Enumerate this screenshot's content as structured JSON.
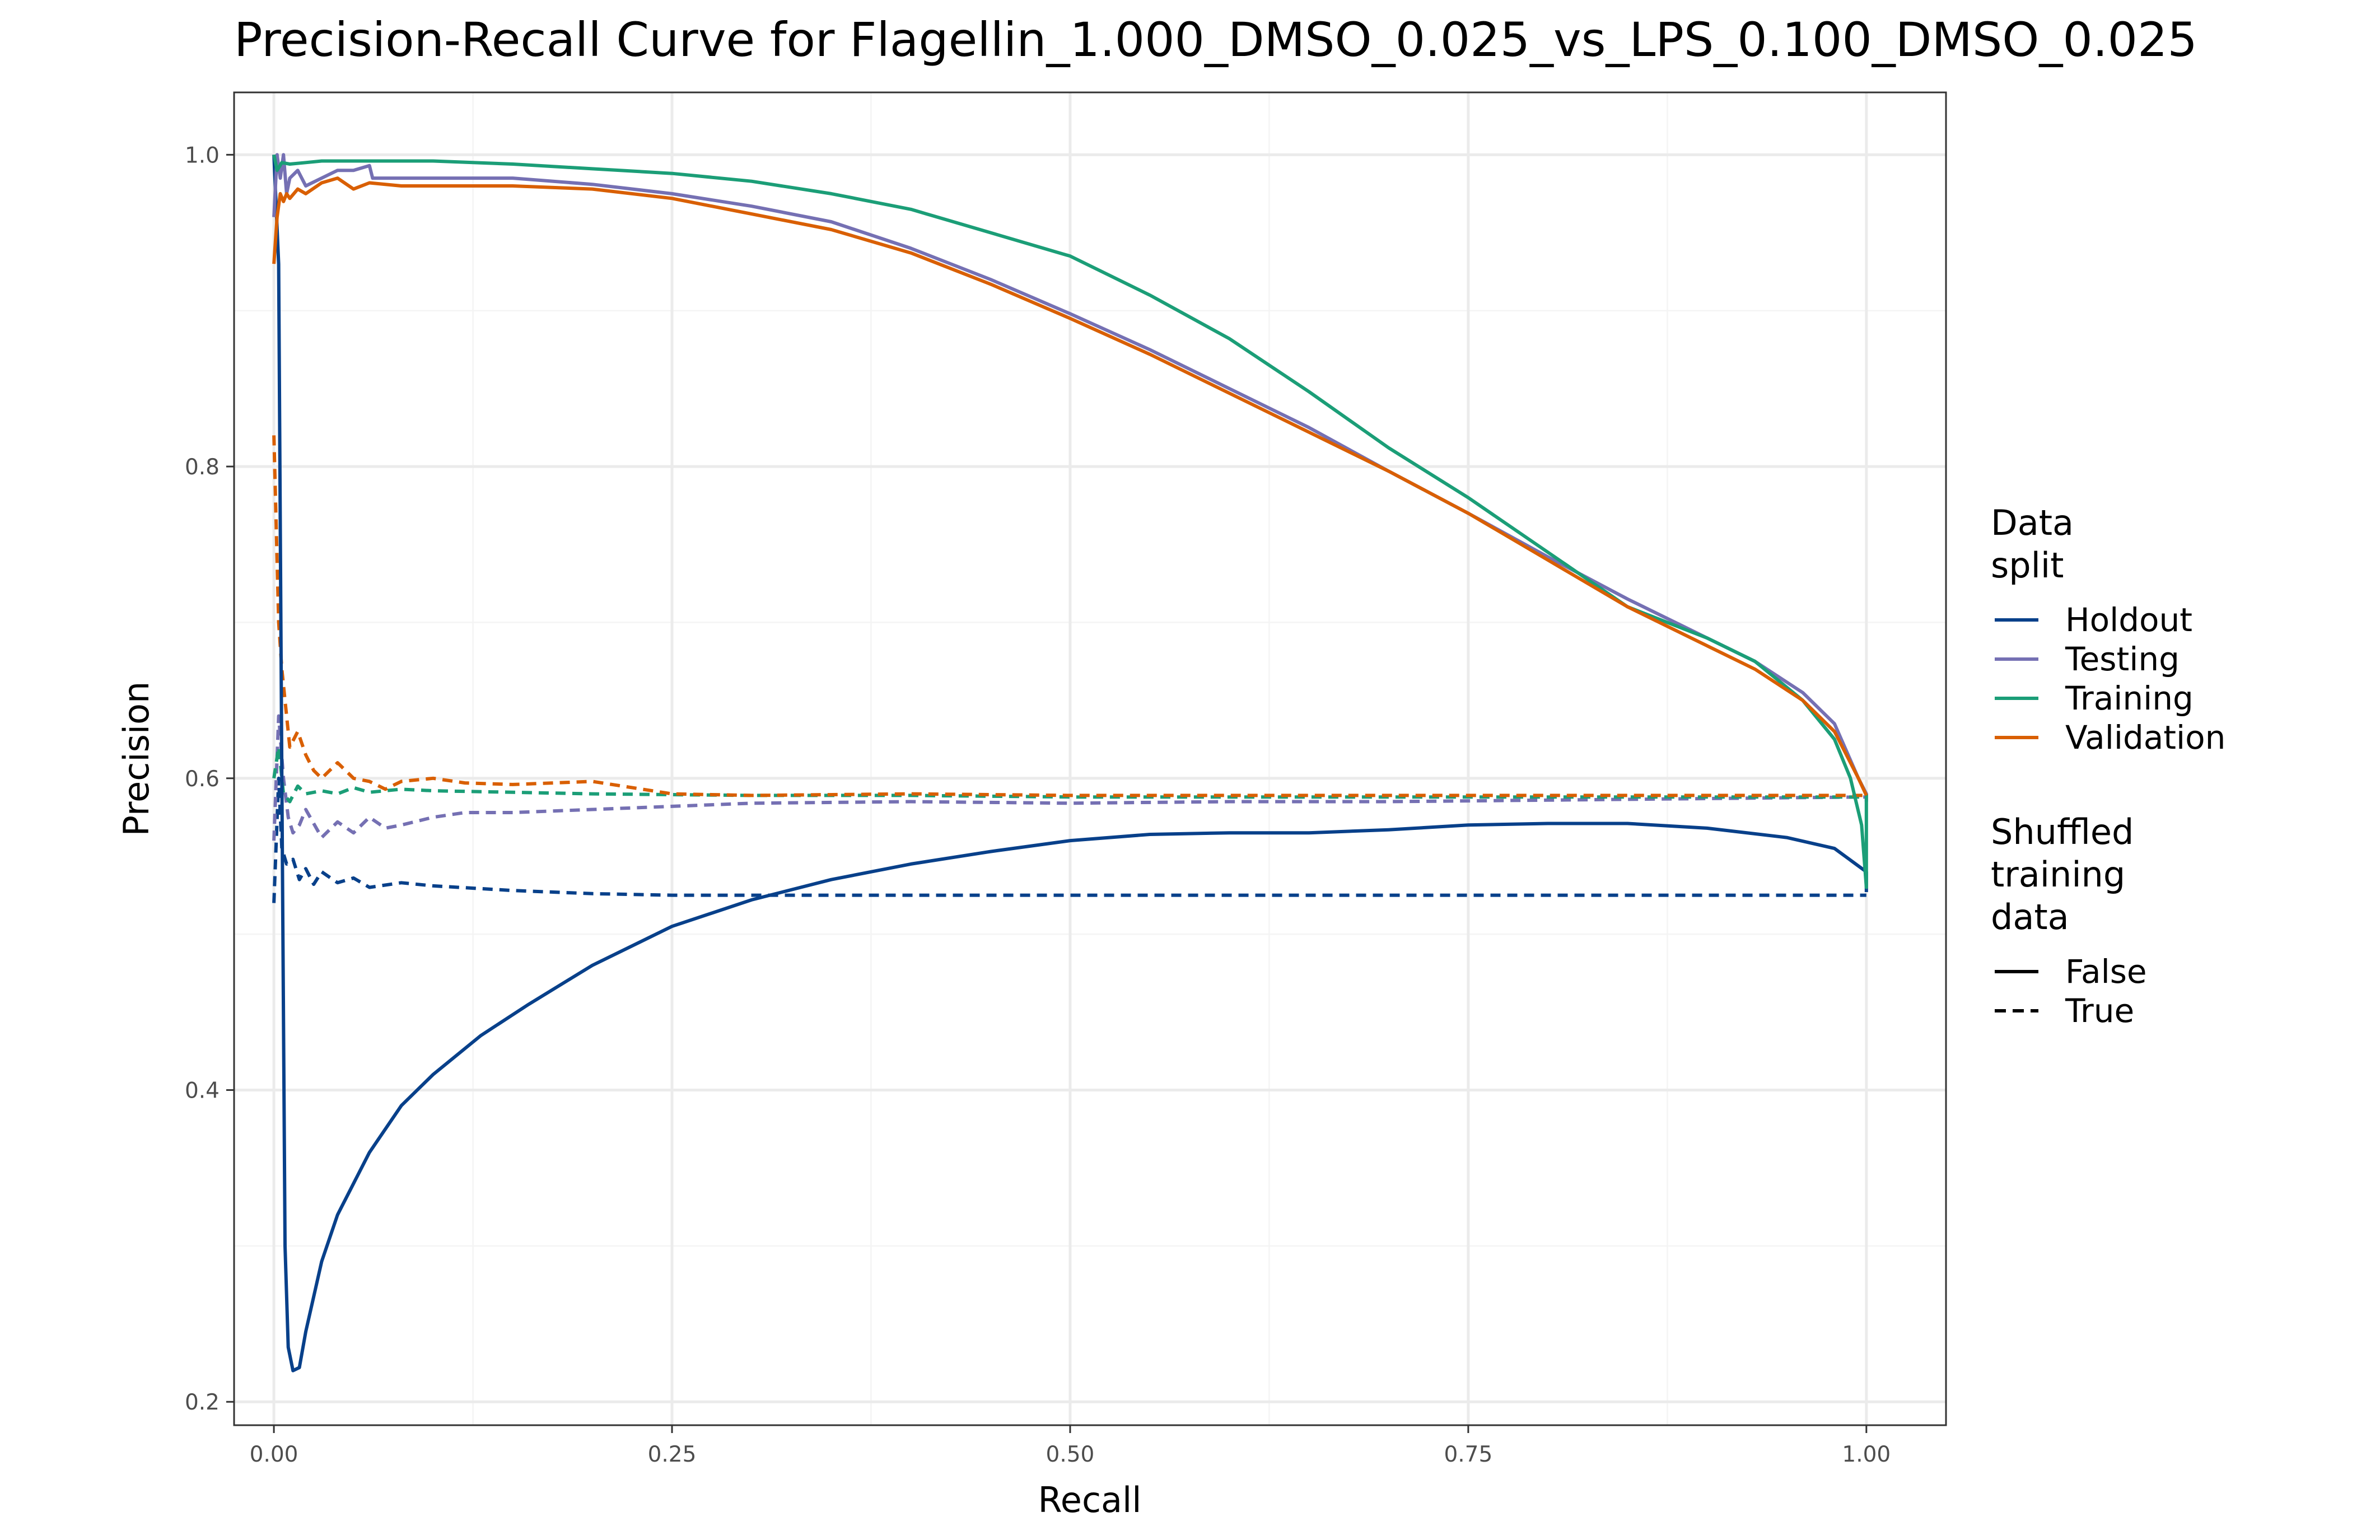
{
  "chart_data": {
    "type": "line",
    "title": "Precision-Recall Curve for Flagellin_1.000_DMSO_0.025_vs_LPS_0.100_DMSO_0.025",
    "xlabel": "Recall",
    "ylabel": "Precision",
    "xlim": [
      -0.025,
      1.05
    ],
    "ylim": [
      0.185,
      1.04
    ],
    "xticks": [
      {
        "value": 0.0,
        "label": "0.00"
      },
      {
        "value": 0.25,
        "label": "0.25"
      },
      {
        "value": 0.5,
        "label": "0.50"
      },
      {
        "value": 0.75,
        "label": "0.75"
      },
      {
        "value": 1.0,
        "label": "1.00"
      }
    ],
    "yticks": [
      {
        "value": 0.2,
        "label": "0.2"
      },
      {
        "value": 0.4,
        "label": "0.4"
      },
      {
        "value": 0.6,
        "label": "0.6"
      },
      {
        "value": 0.8,
        "label": "0.8"
      },
      {
        "value": 1.0,
        "label": "1.0"
      }
    ],
    "grid": true,
    "legend_placement": "right",
    "legends": [
      {
        "title": "Data\nsplit",
        "entries": [
          {
            "label": "Holdout",
            "color": "#08408a"
          },
          {
            "label": "Testing",
            "color": "#7570b3"
          },
          {
            "label": "Training",
            "color": "#1b9e77"
          },
          {
            "label": "Validation",
            "color": "#d95f02"
          }
        ]
      },
      {
        "title": "Shuffled\ntraining\ndata",
        "entries": [
          {
            "label": "False",
            "linetype": "solid"
          },
          {
            "label": "True",
            "linetype": "dashed"
          }
        ]
      }
    ],
    "series": [
      {
        "split": "Holdout",
        "shuffled": "False",
        "color": "#08408a",
        "linetype": "solid",
        "x": [
          0.0,
          0.003,
          0.005,
          0.007,
          0.009,
          0.012,
          0.016,
          0.02,
          0.03,
          0.04,
          0.06,
          0.08,
          0.1,
          0.13,
          0.16,
          0.2,
          0.25,
          0.3,
          0.35,
          0.4,
          0.45,
          0.5,
          0.55,
          0.6,
          0.65,
          0.7,
          0.75,
          0.8,
          0.85,
          0.9,
          0.95,
          0.98,
          1.0,
          1.0
        ],
        "y": [
          1.0,
          0.93,
          0.6,
          0.3,
          0.235,
          0.22,
          0.222,
          0.245,
          0.29,
          0.32,
          0.36,
          0.39,
          0.41,
          0.435,
          0.455,
          0.48,
          0.505,
          0.522,
          0.535,
          0.545,
          0.553,
          0.56,
          0.564,
          0.565,
          0.565,
          0.567,
          0.57,
          0.571,
          0.571,
          0.568,
          0.562,
          0.555,
          0.54,
          0.527
        ]
      },
      {
        "split": "Holdout",
        "shuffled": "True",
        "color": "#08408a",
        "linetype": "dashed",
        "x": [
          0.0,
          0.003,
          0.005,
          0.008,
          0.012,
          0.016,
          0.02,
          0.025,
          0.03,
          0.04,
          0.05,
          0.06,
          0.08,
          0.1,
          0.15,
          0.2,
          0.25,
          0.3,
          0.4,
          0.5,
          0.6,
          0.7,
          0.8,
          0.9,
          1.0
        ],
        "y": [
          0.52,
          0.6,
          0.555,
          0.545,
          0.548,
          0.535,
          0.542,
          0.532,
          0.54,
          0.533,
          0.536,
          0.53,
          0.533,
          0.531,
          0.528,
          0.526,
          0.525,
          0.525,
          0.525,
          0.525,
          0.525,
          0.525,
          0.525,
          0.525,
          0.525
        ]
      },
      {
        "split": "Testing",
        "shuffled": "False",
        "color": "#7570b3",
        "linetype": "solid",
        "x": [
          0.0,
          0.002,
          0.004,
          0.006,
          0.008,
          0.01,
          0.015,
          0.02,
          0.03,
          0.04,
          0.05,
          0.06,
          0.062,
          0.08,
          0.1,
          0.15,
          0.2,
          0.25,
          0.3,
          0.35,
          0.4,
          0.45,
          0.5,
          0.55,
          0.6,
          0.65,
          0.7,
          0.75,
          0.8,
          0.85,
          0.9,
          0.93,
          0.96,
          0.98,
          0.995,
          1.0,
          1.0
        ],
        "y": [
          0.96,
          1.0,
          0.985,
          1.0,
          0.975,
          0.985,
          0.99,
          0.98,
          0.985,
          0.99,
          0.99,
          0.993,
          0.985,
          0.985,
          0.985,
          0.985,
          0.981,
          0.975,
          0.967,
          0.957,
          0.94,
          0.92,
          0.898,
          0.875,
          0.85,
          0.825,
          0.797,
          0.77,
          0.742,
          0.715,
          0.69,
          0.675,
          0.655,
          0.635,
          0.6,
          0.59,
          0.585
        ]
      },
      {
        "split": "Testing",
        "shuffled": "True",
        "color": "#7570b3",
        "linetype": "dashed",
        "x": [
          0.0,
          0.003,
          0.006,
          0.009,
          0.012,
          0.016,
          0.02,
          0.03,
          0.04,
          0.05,
          0.06,
          0.07,
          0.08,
          0.1,
          0.12,
          0.15,
          0.2,
          0.25,
          0.3,
          0.4,
          0.5,
          0.6,
          0.7,
          0.8,
          0.9,
          1.0
        ],
        "y": [
          0.56,
          0.64,
          0.6,
          0.575,
          0.565,
          0.57,
          0.58,
          0.562,
          0.572,
          0.565,
          0.575,
          0.568,
          0.57,
          0.575,
          0.578,
          0.578,
          0.58,
          0.582,
          0.584,
          0.585,
          0.584,
          0.585,
          0.585,
          0.586,
          0.587,
          0.588
        ]
      },
      {
        "split": "Training",
        "shuffled": "False",
        "color": "#1b9e77",
        "linetype": "solid",
        "x": [
          0.0,
          0.002,
          0.005,
          0.01,
          0.02,
          0.03,
          0.05,
          0.1,
          0.15,
          0.2,
          0.25,
          0.3,
          0.35,
          0.4,
          0.45,
          0.5,
          0.55,
          0.6,
          0.65,
          0.7,
          0.75,
          0.8,
          0.85,
          0.9,
          0.93,
          0.96,
          0.98,
          0.99,
          0.997,
          1.0,
          1.0
        ],
        "y": [
          1.0,
          0.99,
          0.995,
          0.994,
          0.995,
          0.996,
          0.996,
          0.996,
          0.994,
          0.991,
          0.988,
          0.983,
          0.975,
          0.965,
          0.95,
          0.935,
          0.91,
          0.882,
          0.848,
          0.812,
          0.78,
          0.745,
          0.71,
          0.69,
          0.675,
          0.65,
          0.625,
          0.6,
          0.57,
          0.53,
          0.59
        ]
      },
      {
        "split": "Training",
        "shuffled": "True",
        "color": "#1b9e77",
        "linetype": "dashed",
        "x": [
          0.0,
          0.003,
          0.006,
          0.01,
          0.015,
          0.02,
          0.03,
          0.04,
          0.05,
          0.06,
          0.08,
          0.1,
          0.15,
          0.2,
          0.3,
          0.4,
          0.5,
          0.6,
          0.7,
          0.8,
          0.9,
          1.0
        ],
        "y": [
          0.6,
          0.62,
          0.59,
          0.585,
          0.595,
          0.59,
          0.592,
          0.59,
          0.594,
          0.591,
          0.593,
          0.592,
          0.591,
          0.59,
          0.589,
          0.589,
          0.588,
          0.588,
          0.588,
          0.588,
          0.588,
          0.588
        ]
      },
      {
        "split": "Validation",
        "shuffled": "False",
        "color": "#d95f02",
        "linetype": "solid",
        "x": [
          0.0,
          0.002,
          0.004,
          0.006,
          0.008,
          0.01,
          0.015,
          0.02,
          0.03,
          0.04,
          0.05,
          0.06,
          0.08,
          0.1,
          0.15,
          0.2,
          0.25,
          0.3,
          0.35,
          0.4,
          0.45,
          0.5,
          0.55,
          0.6,
          0.65,
          0.7,
          0.75,
          0.8,
          0.85,
          0.9,
          0.93,
          0.96,
          0.98,
          0.995,
          1.0,
          1.0
        ],
        "y": [
          0.93,
          0.96,
          0.975,
          0.97,
          0.975,
          0.972,
          0.978,
          0.975,
          0.982,
          0.985,
          0.978,
          0.982,
          0.98,
          0.98,
          0.98,
          0.978,
          0.972,
          0.962,
          0.952,
          0.937,
          0.917,
          0.895,
          0.872,
          0.847,
          0.822,
          0.797,
          0.77,
          0.74,
          0.71,
          0.685,
          0.67,
          0.65,
          0.63,
          0.6,
          0.589,
          0.589
        ]
      },
      {
        "split": "Validation",
        "shuffled": "True",
        "color": "#d95f02",
        "linetype": "dashed",
        "x": [
          0.0,
          0.003,
          0.005,
          0.008,
          0.01,
          0.015,
          0.02,
          0.025,
          0.03,
          0.04,
          0.05,
          0.06,
          0.07,
          0.08,
          0.1,
          0.12,
          0.15,
          0.2,
          0.25,
          0.3,
          0.4,
          0.5,
          0.6,
          0.7,
          0.8,
          0.9,
          1.0
        ],
        "y": [
          0.82,
          0.7,
          0.67,
          0.64,
          0.62,
          0.63,
          0.615,
          0.605,
          0.6,
          0.61,
          0.6,
          0.598,
          0.593,
          0.598,
          0.6,
          0.597,
          0.596,
          0.598,
          0.59,
          0.589,
          0.59,
          0.589,
          0.589,
          0.589,
          0.589,
          0.589,
          0.589
        ]
      }
    ]
  }
}
